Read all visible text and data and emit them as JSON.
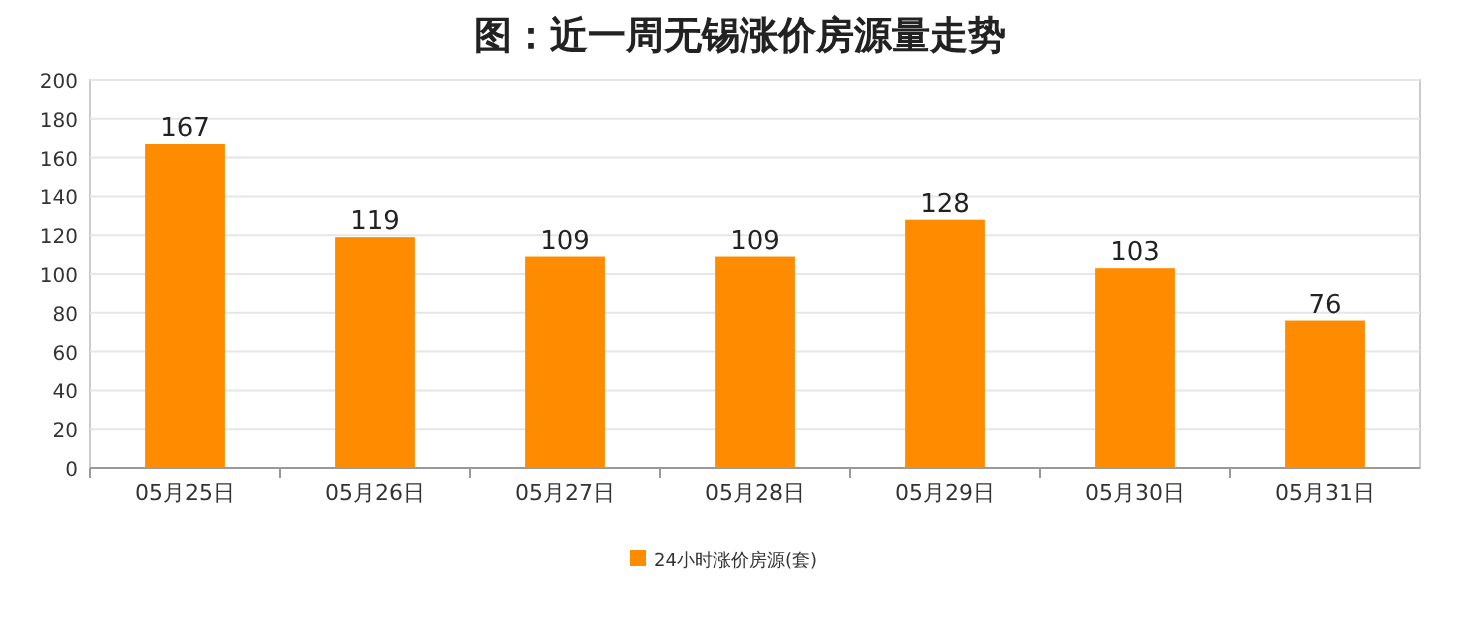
{
  "chart_data": {
    "type": "bar",
    "title": "图：近一周无锡涨价房源量走势",
    "categories": [
      "05月25日",
      "05月26日",
      "05月27日",
      "05月28日",
      "05月29日",
      "05月30日",
      "05月31日"
    ],
    "series": [
      {
        "name": "24小时涨价房源(套)",
        "color": "#ff8c00",
        "values": [
          167,
          119,
          109,
          109,
          128,
          103,
          76
        ]
      }
    ],
    "ylim": [
      0,
      200
    ],
    "yticks": [
      0,
      20,
      40,
      60,
      80,
      100,
      120,
      140,
      160,
      180,
      200
    ],
    "grid": "y",
    "legend": "bottom",
    "data_labels": true
  }
}
